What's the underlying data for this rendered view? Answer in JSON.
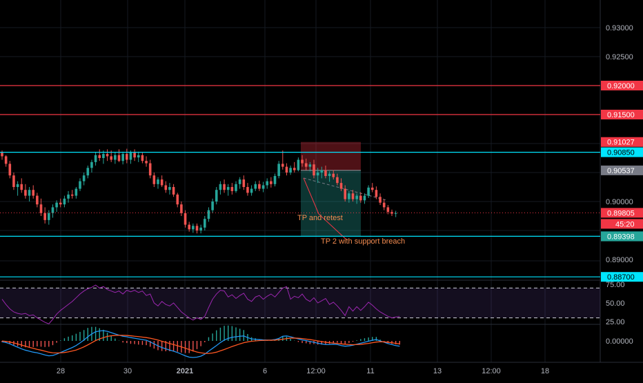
{
  "chart_data": [
    {
      "type": "candlestick",
      "title": "",
      "xlabel": "",
      "ylabel": "",
      "x_tick_labels": [
        "28",
        "30",
        "2021",
        "6",
        "12:00",
        "11",
        "13",
        "12:00",
        "18"
      ],
      "y_ticks": [
        "0.93000",
        "0.92500",
        "0.90000",
        "0.89000"
      ],
      "ylim": [
        0.8855,
        0.9345
      ],
      "candles": [
        [
          0.9084,
          0.9088,
          0.9072,
          0.9078
        ],
        [
          0.9078,
          0.908,
          0.906,
          0.9065
        ],
        [
          0.9065,
          0.907,
          0.904,
          0.9045
        ],
        [
          0.9045,
          0.905,
          0.902,
          0.9025
        ],
        [
          0.9025,
          0.9035,
          0.901,
          0.903
        ],
        [
          0.903,
          0.904,
          0.9015,
          0.902
        ],
        [
          0.902,
          0.903,
          0.9005,
          0.901
        ],
        [
          0.901,
          0.9025,
          0.9,
          0.902
        ],
        [
          0.902,
          0.9028,
          0.9005,
          0.901
        ],
        [
          0.901,
          0.9015,
          0.899,
          0.8995
        ],
        [
          0.8995,
          0.9005,
          0.8975,
          0.898
        ],
        [
          0.898,
          0.899,
          0.8962,
          0.8968
        ],
        [
          0.8968,
          0.8985,
          0.896,
          0.898
        ],
        [
          0.898,
          0.8995,
          0.8972,
          0.899
        ],
        [
          0.899,
          0.9002,
          0.8982,
          0.8998
        ],
        [
          0.8998,
          0.9005,
          0.899,
          0.8995
        ],
        [
          0.8995,
          0.901,
          0.899,
          0.9005
        ],
        [
          0.9005,
          0.9018,
          0.8998,
          0.9012
        ],
        [
          0.9012,
          0.902,
          0.9005,
          0.901
        ],
        [
          0.901,
          0.9025,
          0.9005,
          0.9022
        ],
        [
          0.9022,
          0.904,
          0.9018,
          0.9035
        ],
        [
          0.9035,
          0.905,
          0.9028,
          0.9045
        ],
        [
          0.9045,
          0.9062,
          0.904,
          0.9058
        ],
        [
          0.9058,
          0.9072,
          0.905,
          0.9068
        ],
        [
          0.9068,
          0.9085,
          0.9062,
          0.908
        ],
        [
          0.908,
          0.909,
          0.907,
          0.9075
        ],
        [
          0.9075,
          0.9088,
          0.9065,
          0.9082
        ],
        [
          0.9082,
          0.909,
          0.907,
          0.9078
        ],
        [
          0.9078,
          0.9088,
          0.9068,
          0.9072
        ],
        [
          0.9072,
          0.9085,
          0.9065,
          0.908
        ],
        [
          0.908,
          0.909,
          0.9068,
          0.907
        ],
        [
          0.907,
          0.9086,
          0.9064,
          0.9082
        ],
        [
          0.9082,
          0.9091,
          0.9066,
          0.9072
        ],
        [
          0.9072,
          0.9088,
          0.9065,
          0.9084
        ],
        [
          0.9084,
          0.909,
          0.907,
          0.9076
        ],
        [
          0.9076,
          0.9086,
          0.9068,
          0.908
        ],
        [
          0.908,
          0.9084,
          0.9066,
          0.907
        ],
        [
          0.907,
          0.9078,
          0.906,
          0.9066
        ],
        [
          0.9066,
          0.9072,
          0.904,
          0.9045
        ],
        [
          0.9045,
          0.905,
          0.9025,
          0.903
        ],
        [
          0.903,
          0.9042,
          0.9022,
          0.9038
        ],
        [
          0.9038,
          0.9045,
          0.9025,
          0.9028
        ],
        [
          0.9028,
          0.9035,
          0.9015,
          0.902
        ],
        [
          0.902,
          0.9032,
          0.9012,
          0.9025
        ],
        [
          0.9025,
          0.903,
          0.9008,
          0.9012
        ],
        [
          0.9012,
          0.9015,
          0.899,
          0.8995
        ],
        [
          0.8995,
          0.9,
          0.8975,
          0.898
        ],
        [
          0.898,
          0.8985,
          0.8955,
          0.896
        ],
        [
          0.896,
          0.8965,
          0.8948,
          0.8952
        ],
        [
          0.8952,
          0.8962,
          0.8946,
          0.8958
        ],
        [
          0.8958,
          0.8962,
          0.8945,
          0.895
        ],
        [
          0.895,
          0.896,
          0.8945,
          0.8955
        ],
        [
          0.8955,
          0.8975,
          0.895,
          0.897
        ],
        [
          0.897,
          0.899,
          0.8965,
          0.8985
        ],
        [
          0.8985,
          0.9005,
          0.898,
          0.9
        ],
        [
          0.9,
          0.9025,
          0.8995,
          0.902
        ],
        [
          0.902,
          0.9035,
          0.9012,
          0.903
        ],
        [
          0.903,
          0.9038,
          0.9015,
          0.902
        ],
        [
          0.902,
          0.903,
          0.901,
          0.9025
        ],
        [
          0.9025,
          0.9032,
          0.9012,
          0.9018
        ],
        [
          0.9018,
          0.9035,
          0.9015,
          0.903
        ],
        [
          0.903,
          0.9042,
          0.9022,
          0.9038
        ],
        [
          0.9038,
          0.9045,
          0.902,
          0.9025
        ],
        [
          0.9025,
          0.9032,
          0.901,
          0.9015
        ],
        [
          0.9015,
          0.9028,
          0.901,
          0.9022
        ],
        [
          0.9022,
          0.9035,
          0.9018,
          0.903
        ],
        [
          0.903,
          0.9036,
          0.9018,
          0.9022
        ],
        [
          0.9022,
          0.9034,
          0.9016,
          0.9028
        ],
        [
          0.9028,
          0.904,
          0.9022,
          0.9035
        ],
        [
          0.9035,
          0.9042,
          0.9024,
          0.903
        ],
        [
          0.903,
          0.9048,
          0.9026,
          0.9044
        ],
        [
          0.9044,
          0.907,
          0.904,
          0.9065
        ],
        [
          0.9065,
          0.9088,
          0.9055,
          0.906
        ],
        [
          0.906,
          0.9066,
          0.9045,
          0.905
        ],
        [
          0.905,
          0.9062,
          0.9046,
          0.9058
        ],
        [
          0.9058,
          0.9068,
          0.905,
          0.9054
        ],
        [
          0.9054,
          0.9076,
          0.9052,
          0.9072
        ],
        [
          0.9072,
          0.908,
          0.906,
          0.9066
        ],
        [
          0.9066,
          0.9074,
          0.9054,
          0.906
        ],
        [
          0.906,
          0.9068,
          0.9052,
          0.9064
        ],
        [
          0.9064,
          0.9072,
          0.904,
          0.9045
        ],
        [
          0.9045,
          0.9058,
          0.9032,
          0.905
        ],
        [
          0.905,
          0.906,
          0.904,
          0.9054
        ],
        [
          0.9054,
          0.9062,
          0.904,
          0.9044
        ],
        [
          0.9044,
          0.9052,
          0.9034,
          0.9048
        ],
        [
          0.9048,
          0.9054,
          0.9038,
          0.9042
        ],
        [
          0.9042,
          0.9048,
          0.9028,
          0.9032
        ],
        [
          0.9032,
          0.904,
          0.9018,
          0.9022
        ],
        [
          0.9022,
          0.9028,
          0.9,
          0.9004
        ],
        [
          0.9004,
          0.9018,
          0.8998,
          0.9014
        ],
        [
          0.9014,
          0.902,
          0.9,
          0.9004
        ],
        [
          0.9004,
          0.9014,
          0.8996,
          0.901
        ],
        [
          0.901,
          0.9016,
          0.8998,
          0.9002
        ],
        [
          0.9002,
          0.9014,
          0.8996,
          0.901
        ],
        [
          0.901,
          0.9028,
          0.9006,
          0.9024
        ],
        [
          0.9024,
          0.9032,
          0.9016,
          0.902
        ],
        [
          0.902,
          0.9026,
          0.9004,
          0.9008
        ],
        [
          0.9008,
          0.9014,
          0.8994,
          0.8998
        ],
        [
          0.8998,
          0.9004,
          0.8985,
          0.899
        ],
        [
          0.899,
          0.8994,
          0.8978,
          0.8982
        ],
        [
          0.8982,
          0.8986,
          0.8975,
          0.8979
        ],
        [
          0.8979,
          0.8984,
          0.8973,
          0.898
        ]
      ],
      "horizontal_levels": [
        {
          "value": 0.92,
          "label": "0.92000",
          "color": "#f23645"
        },
        {
          "value": 0.915,
          "label": "0.91500",
          "color": "#f23645"
        },
        {
          "value": 0.9085,
          "label": "0.90850",
          "color": "#00e5ff"
        },
        {
          "value": 0.894,
          "label": "0.89400",
          "color": "#00e5ff"
        },
        {
          "value": 0.887,
          "label": "0.88700",
          "color": "#00e5ff"
        }
      ],
      "price_tags": [
        {
          "value": 0.91027,
          "label": "0.91027",
          "color": "#f23645"
        },
        {
          "value": 0.90537,
          "label": "0.90537",
          "color": "#787b86"
        },
        {
          "value": 0.89398,
          "label": "0.89398",
          "color": "#26a69a"
        }
      ],
      "last_price": {
        "value": 0.89805,
        "label": "0.89805",
        "countdown": "45:20",
        "color": "#f23645"
      },
      "position_box": {
        "entry": 0.90537,
        "stop": 0.91027,
        "target": 0.89398,
        "stop_color": "#f23645",
        "target_color": "#26a69a"
      },
      "annotations": [
        "TP and retest",
        "TP 2 with support breach"
      ],
      "colors": {
        "up": "#26a69a",
        "down": "#ef5350",
        "background": "#000000"
      }
    },
    {
      "type": "line",
      "indicator": "RSI",
      "y_ticks": [
        "75.00",
        "50.00",
        "25.00"
      ],
      "ylim": [
        20,
        80
      ],
      "bands": [
        30,
        70
      ],
      "values": [
        55,
        48,
        42,
        38,
        36,
        35,
        36,
        33,
        34,
        30,
        27,
        24,
        22,
        28,
        35,
        40,
        44,
        48,
        52,
        57,
        62,
        66,
        69,
        71,
        74,
        70,
        72,
        68,
        66,
        64,
        66,
        62,
        67,
        65,
        67,
        64,
        66,
        60,
        62,
        50,
        46,
        52,
        48,
        46,
        50,
        44,
        38,
        34,
        30,
        27,
        30,
        28,
        32,
        44,
        55,
        62,
        67,
        66,
        58,
        61,
        56,
        60,
        63,
        55,
        52,
        58,
        60,
        55,
        59,
        62,
        58,
        64,
        70,
        72,
        55,
        59,
        57,
        62,
        55,
        52,
        57,
        50,
        53,
        56,
        48,
        51,
        46,
        40,
        33,
        45,
        39,
        45,
        40,
        45,
        51,
        47,
        42,
        38,
        35,
        32,
        30,
        31,
        32
      ],
      "color": "#9c27b0"
    },
    {
      "type": "line",
      "indicator": "MACD",
      "y_ticks": [
        "0.00000"
      ],
      "ylim": [
        -1.1,
        1.1
      ],
      "series": [
        {
          "values": [
            -0.05,
            -0.1,
            -0.18,
            -0.28,
            -0.38,
            -0.48,
            -0.56,
            -0.62,
            -0.68,
            -0.72,
            -0.78,
            -0.85,
            -0.9,
            -0.88,
            -0.8,
            -0.7,
            -0.6,
            -0.5,
            -0.4,
            -0.28,
            -0.12,
            0.05,
            0.25,
            0.42,
            0.55,
            0.6,
            0.62,
            0.58,
            0.5,
            0.42,
            0.35,
            0.28,
            0.25,
            0.2,
            0.16,
            0.12,
            0.08,
            0.04,
            -0.06,
            -0.18,
            -0.3,
            -0.4,
            -0.48,
            -0.55,
            -0.62,
            -0.7,
            -0.8,
            -0.9,
            -0.98,
            -1.0,
            -0.98,
            -0.92,
            -0.8,
            -0.62,
            -0.45,
            -0.28,
            -0.1,
            0.05,
            0.15,
            0.22,
            0.25,
            0.28,
            0.3,
            0.2,
            0.12,
            0.1,
            0.08,
            0.06,
            0.05,
            0.05,
            0.08,
            0.15,
            0.28,
            0.3,
            0.25,
            0.18,
            0.12,
            0.06,
            0.02,
            -0.04,
            -0.08,
            -0.14,
            -0.18,
            -0.22,
            -0.22,
            -0.2,
            -0.22,
            -0.28,
            -0.32,
            -0.3,
            -0.26,
            -0.2,
            -0.14,
            -0.08,
            -0.02,
            0.04,
            0.08,
            0.0,
            -0.08,
            -0.16,
            -0.22,
            -0.28,
            -0.32
          ],
          "color": "#2196f3"
        },
        {
          "values": [
            0.0,
            -0.03,
            -0.07,
            -0.12,
            -0.18,
            -0.25,
            -0.32,
            -0.39,
            -0.45,
            -0.51,
            -0.56,
            -0.62,
            -0.68,
            -0.72,
            -0.73,
            -0.72,
            -0.7,
            -0.66,
            -0.61,
            -0.55,
            -0.46,
            -0.36,
            -0.24,
            -0.11,
            0.02,
            0.12,
            0.2,
            0.27,
            0.31,
            0.33,
            0.34,
            0.34,
            0.33,
            0.31,
            0.28,
            0.26,
            0.23,
            0.2,
            0.16,
            0.11,
            0.05,
            -0.02,
            -0.09,
            -0.16,
            -0.22,
            -0.29,
            -0.36,
            -0.44,
            -0.52,
            -0.6,
            -0.67,
            -0.72,
            -0.75,
            -0.76,
            -0.73,
            -0.68,
            -0.6,
            -0.52,
            -0.43,
            -0.34,
            -0.26,
            -0.18,
            -0.11,
            -0.06,
            -0.02,
            0.0,
            0.02,
            0.03,
            0.04,
            0.04,
            0.05,
            0.07,
            0.1,
            0.14,
            0.17,
            0.17,
            0.16,
            0.14,
            0.11,
            0.08,
            0.04,
            0.0,
            -0.04,
            -0.08,
            -0.11,
            -0.13,
            -0.15,
            -0.18,
            -0.2,
            -0.22,
            -0.23,
            -0.22,
            -0.21,
            -0.18,
            -0.15,
            -0.11,
            -0.07,
            -0.05,
            -0.06,
            -0.08,
            -0.11,
            -0.15,
            -0.18
          ],
          "color": "#ff5722"
        }
      ]
    }
  ]
}
